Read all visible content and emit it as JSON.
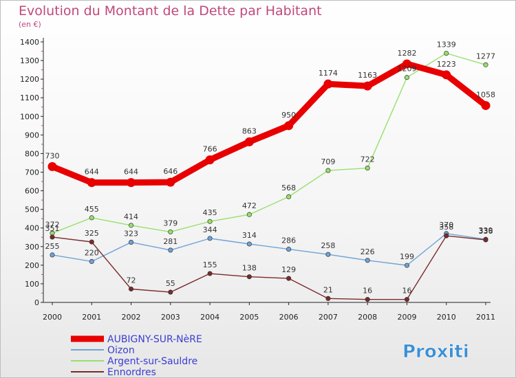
{
  "chart_data": {
    "type": "line",
    "title": "Evolution du Montant de la Dette par Habitant",
    "subtitle": "(en €)",
    "x": [
      "2000",
      "2001",
      "2002",
      "2003",
      "2004",
      "2005",
      "2006",
      "2007",
      "2008",
      "2009",
      "2010",
      "2011"
    ],
    "ylim": [
      0,
      1400
    ],
    "yticks": [
      0,
      100,
      200,
      300,
      400,
      500,
      600,
      700,
      800,
      900,
      1000,
      1100,
      1200,
      1300,
      1400
    ],
    "grid": false,
    "legend_position": "bottom-left",
    "series": [
      {
        "name": "AUBIGNY-SUR-NèRE",
        "color": "#e80000",
        "values": [
          730,
          644,
          644,
          646,
          766,
          863,
          950,
          1174,
          1163,
          1282,
          1223,
          1058
        ]
      },
      {
        "name": "Oizon",
        "color": "#6fa3d6",
        "values": [
          255,
          220,
          323,
          281,
          344,
          314,
          286,
          258,
          226,
          199,
          370,
          339
        ]
      },
      {
        "name": "Argent-sur-Sauldre",
        "color": "#97e06c",
        "values": [
          372,
          455,
          414,
          379,
          435,
          472,
          568,
          709,
          722,
          1209,
          1339,
          1277
        ]
      },
      {
        "name": "Ennordres",
        "color": "#7a2a2a",
        "values": [
          351,
          325,
          72,
          55,
          155,
          138,
          129,
          21,
          16,
          16,
          358,
          336
        ]
      }
    ],
    "label_order": [
      2,
      3,
      1,
      0
    ]
  },
  "logo_text": "Proxiti"
}
